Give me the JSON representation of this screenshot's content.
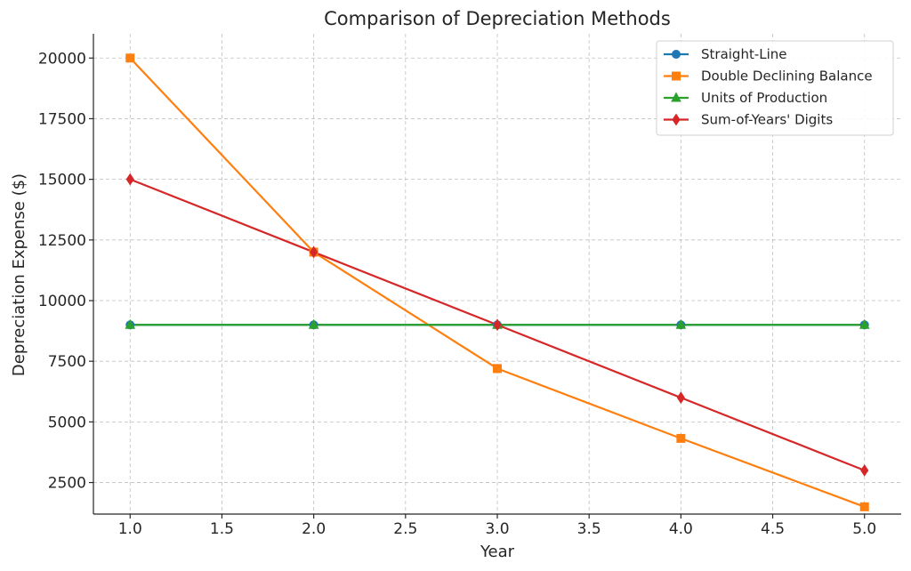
{
  "chart_data": {
    "type": "line",
    "title": "Comparison of Depreciation Methods",
    "xlabel": "Year",
    "ylabel": "Depreciation Expense ($)",
    "x": [
      1,
      2,
      3,
      4,
      5
    ],
    "xlim": [
      0.8,
      5.2
    ],
    "ylim": [
      1200,
      21000
    ],
    "xticks": [
      1.0,
      1.5,
      2.0,
      2.5,
      3.0,
      3.5,
      4.0,
      4.5,
      5.0
    ],
    "xtick_labels": [
      "1.0",
      "1.5",
      "2.0",
      "2.5",
      "3.0",
      "3.5",
      "4.0",
      "4.5",
      "5.0"
    ],
    "yticks": [
      2500,
      5000,
      7500,
      10000,
      12500,
      15000,
      17500,
      20000
    ],
    "ytick_labels": [
      "2500",
      "5000",
      "7500",
      "10000",
      "12500",
      "15000",
      "17500",
      "20000"
    ],
    "grid": true,
    "legend_position": "top-right",
    "series": [
      {
        "name": "Straight-Line",
        "values": [
          9000,
          9000,
          9000,
          9000,
          9000
        ],
        "color": "#1f77b4",
        "marker": "circle"
      },
      {
        "name": "Double Declining Balance",
        "values": [
          20000,
          12000,
          7200,
          4320,
          1500
        ],
        "color": "#ff7f0e",
        "marker": "square"
      },
      {
        "name": "Units of Production",
        "values": [
          9000,
          9000,
          9000,
          9000,
          9000
        ],
        "color": "#2ca02c",
        "marker": "triangle"
      },
      {
        "name": "Sum-of-Years' Digits",
        "values": [
          15000,
          12000,
          9000,
          6000,
          3000
        ],
        "color": "#d62728",
        "marker": "diamond"
      }
    ]
  }
}
